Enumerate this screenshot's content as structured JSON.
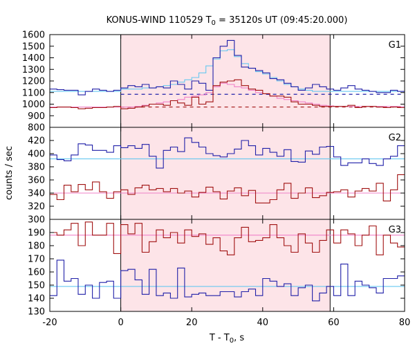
{
  "chart_data": {
    "type": "line",
    "title": {
      "prefix": "KONUS-WIND 110529 T",
      "sub": "0",
      "suffix": " = 35120s UT (09:45:20.000)"
    },
    "xlabel": {
      "prefix": "T - T",
      "sub": "0",
      "suffix": ", s"
    },
    "ylabel": "counts / sec",
    "xlim": [
      -20,
      80
    ],
    "xticks": [
      -20,
      0,
      20,
      40,
      60,
      80
    ],
    "highlight_interval": [
      0,
      59
    ],
    "colors": {
      "blue_series": "#1f1fa8",
      "red_series": "#a01010",
      "blue_fit": "#66c8f0",
      "red_fit": "#f080c8",
      "highlight": "#fde4e8"
    },
    "panels": [
      {
        "label": "G1",
        "ylim": [
          800,
          1600
        ],
        "yticks": [
          800,
          900,
          1000,
          1100,
          1200,
          1300,
          1400,
          1500,
          1600
        ],
        "show_bottom_tick": false,
        "series": [
          {
            "color_key": "blue_series",
            "x_start": -20,
            "bin": 2,
            "values": [
              1130,
              1125,
              1120,
              1120,
              1080,
              1110,
              1130,
              1120,
              1110,
              1120,
              1140,
              1160,
              1150,
              1170,
              1140,
              1150,
              1140,
              1200,
              1170,
              1130,
              1200,
              1180,
              1120,
              1400,
              1500,
              1550,
              1420,
              1320,
              1310,
              1290,
              1270,
              1220,
              1210,
              1180,
              1150,
              1120,
              1140,
              1170,
              1150,
              1130,
              1120,
              1140,
              1160,
              1130,
              1120,
              1110,
              1100,
              1100,
              1120,
              1110
            ]
          },
          {
            "color_key": "red_series",
            "x_start": -20,
            "bin": 2,
            "values": [
              970,
              975,
              975,
              970,
              960,
              965,
              970,
              970,
              975,
              980,
              960,
              965,
              975,
              985,
              1000,
              1000,
              990,
              1030,
              1010,
              990,
              1060,
              1000,
              1020,
              1160,
              1190,
              1200,
              1210,
              1160,
              1130,
              1120,
              1090,
              1070,
              1070,
              1060,
              1020,
              1000,
              1000,
              990,
              980,
              980,
              980,
              980,
              990,
              970,
              980,
              980,
              975,
              970,
              975,
              970
            ]
          },
          {
            "color_key": "blue_fit",
            "x_start": -20,
            "bin": 2,
            "values": [
              1110,
              1110,
              1110,
              1110,
              1110,
              1110,
              1110,
              1110,
              1110,
              1110,
              1130,
              1130,
              1130,
              1140,
              1140,
              1150,
              1160,
              1170,
              1190,
              1210,
              1230,
              1270,
              1330,
              1390,
              1460,
              1470,
              1410,
              1350,
              1310,
              1280,
              1260,
              1230,
              1200,
              1170,
              1150,
              1130,
              1120,
              1110,
              1110,
              1110,
              1110,
              1110,
              1110,
              1110,
              1110,
              1110,
              1110,
              1110,
              1110,
              1110
            ]
          },
          {
            "color_key": "red_fit",
            "x_start": -20,
            "bin": 2,
            "values": [
              975,
              975,
              975,
              975,
              975,
              975,
              975,
              975,
              975,
              975,
              975,
              975,
              980,
              990,
              1000,
              1010,
              1020,
              1030,
              1040,
              1060,
              1070,
              1080,
              1100,
              1150,
              1180,
              1170,
              1150,
              1140,
              1120,
              1100,
              1090,
              1070,
              1050,
              1040,
              1030,
              1020,
              1010,
              1000,
              990,
              985,
              980,
              980,
              980,
              980,
              980,
              980,
              980,
              980,
              980,
              980
            ]
          }
        ],
        "baselines": [
          {
            "color_key": "blue_series",
            "value": 1085,
            "x_range": [
              0,
              80
            ]
          },
          {
            "color_key": "red_series",
            "value": 975,
            "x_range": [
              0,
              80
            ]
          }
        ]
      },
      {
        "label": "G2",
        "ylim": [
          300,
          440
        ],
        "yticks": [
          300,
          320,
          340,
          360,
          380,
          400,
          420
        ],
        "show_bottom_tick": true,
        "series": [
          {
            "color_key": "blue_series",
            "x_start": -20,
            "bin": 2,
            "values": [
              398,
              391,
              389,
              398,
              415,
              413,
              405,
              405,
              402,
              412,
              409,
              412,
              408,
              414,
              396,
              378,
              405,
              410,
              403,
              424,
              417,
              410,
              400,
              397,
              395,
              400,
              407,
              420,
              412,
              398,
              408,
              402,
              396,
              406,
              388,
              387,
              404,
              399,
              410,
              411,
              395,
              382,
              386,
              386,
              392,
              385,
              382,
              392,
              396,
              412
            ]
          },
          {
            "color_key": "red_series",
            "x_start": -20,
            "bin": 2,
            "values": [
              338,
              330,
              352,
              342,
              353,
              345,
              357,
              342,
              332,
              342,
              345,
              338,
              348,
              352,
              345,
              347,
              342,
              347,
              340,
              343,
              334,
              341,
              349,
              342,
              331,
              343,
              348,
              336,
              344,
              325,
              325,
              330,
              345,
              355,
              332,
              340,
              348,
              333,
              336,
              341,
              342,
              345,
              334,
              343,
              347,
              343,
              355,
              328,
              345,
              368
            ]
          },
          {
            "color_key": "blue_fit",
            "x_start": -20,
            "bin": 100,
            "values": [
              392
            ]
          },
          {
            "color_key": "red_fit",
            "x_start": -20,
            "bin": 100,
            "values": [
              340
            ]
          }
        ],
        "baselines": []
      },
      {
        "label": "G3",
        "ylim": [
          130,
          200
        ],
        "yticks": [
          130,
          140,
          150,
          160,
          170,
          180,
          190
        ],
        "show_bottom_tick": true,
        "series": [
          {
            "color_key": "blue_series",
            "x_start": -20,
            "bin": 2,
            "values": [
              142,
              169,
              153,
              155,
              143,
              150,
              140,
              152,
              153,
              140,
              161,
              162,
              154,
              143,
              162,
              142,
              144,
              140,
              163,
              141,
              143,
              144,
              142,
              142,
              145,
              145,
              141,
              145,
              147,
              142,
              155,
              153,
              149,
              151,
              142,
              148,
              150,
              138,
              144,
              149,
              142,
              166,
              142,
              153,
              150,
              148,
              144,
              155,
              155,
              157
            ]
          },
          {
            "color_key": "red_series",
            "x_start": -20,
            "bin": 2,
            "values": [
              190,
              188,
              192,
              197,
              180,
              198,
              188,
              188,
              197,
              174,
              196,
              189,
              197,
              175,
              183,
              192,
              186,
              190,
              182,
              192,
              187,
              189,
              181,
              186,
              176,
              173,
              186,
              194,
              183,
              184,
              186,
              196,
              186,
              180,
              175,
              189,
              182,
              175,
              184,
              192,
              182,
              192,
              189,
              180,
              188,
              195,
              173,
              188,
              182,
              179
            ]
          },
          {
            "color_key": "blue_fit",
            "x_start": -20,
            "bin": 100,
            "values": [
              149
            ]
          },
          {
            "color_key": "red_fit",
            "x_start": -20,
            "bin": 100,
            "values": [
              188
            ]
          }
        ],
        "baselines": []
      }
    ]
  }
}
